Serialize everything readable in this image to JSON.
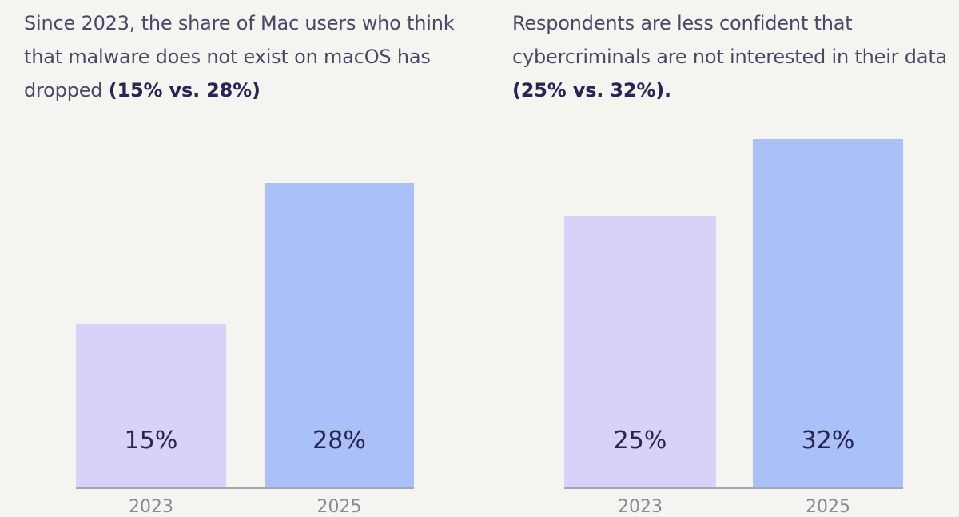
{
  "chart_data": [
    {
      "type": "bar",
      "title_main": "Since 2023, the share of Mac users who think that malware does not exist on macOS has dropped",
      "title_bold": "(15% vs. 28%)",
      "categories": [
        "2023",
        "2025"
      ],
      "values": [
        15,
        28
      ],
      "data_labels": [
        "15%",
        "28%"
      ],
      "colors": [
        "#d6d2f8",
        "#a9c1f8"
      ],
      "ylim": [
        0,
        32
      ],
      "grid": false
    },
    {
      "type": "bar",
      "title_main": "Respondents are less confident that cybercriminals are not interested in their data",
      "title_bold": "(25% vs. 32%).",
      "categories": [
        "2023",
        "2025"
      ],
      "values": [
        25,
        32
      ],
      "data_labels": [
        "25%",
        "32%"
      ],
      "colors": [
        "#d6d2f8",
        "#a9c1f8"
      ],
      "ylim": [
        0,
        32
      ],
      "grid": false
    }
  ]
}
